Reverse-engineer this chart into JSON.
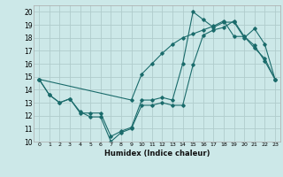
{
  "xlabel": "Humidex (Indice chaleur)",
  "bg_color": "#cce8e8",
  "grid_color": "#b0cccc",
  "line_color": "#1a6b6b",
  "xlim": [
    -0.5,
    23.5
  ],
  "ylim": [
    10,
    20.5
  ],
  "yticks": [
    10,
    11,
    12,
    13,
    14,
    15,
    16,
    17,
    18,
    19,
    20
  ],
  "xticks": [
    0,
    1,
    2,
    3,
    4,
    5,
    6,
    7,
    8,
    9,
    10,
    11,
    12,
    13,
    14,
    15,
    16,
    17,
    18,
    19,
    20,
    21,
    22,
    23
  ],
  "line1_x": [
    0,
    1,
    2,
    3,
    4,
    5,
    6,
    7,
    8,
    9,
    10,
    11,
    12,
    13,
    14,
    15,
    16,
    17,
    18,
    19,
    20,
    21,
    22,
    23
  ],
  "line1_y": [
    14.8,
    13.6,
    13.0,
    13.3,
    12.3,
    11.9,
    11.9,
    10.0,
    10.7,
    11.0,
    12.8,
    12.8,
    13.0,
    12.8,
    12.8,
    15.9,
    18.2,
    18.6,
    18.8,
    19.3,
    18.1,
    17.4,
    16.2,
    14.8
  ],
  "line2_x": [
    0,
    1,
    2,
    3,
    4,
    5,
    6,
    7,
    8,
    9,
    10,
    11,
    12,
    13,
    14,
    15,
    16,
    17,
    18,
    19,
    20,
    21,
    22,
    23
  ],
  "line2_y": [
    14.8,
    13.6,
    13.0,
    13.3,
    12.2,
    12.2,
    12.2,
    10.4,
    10.8,
    11.1,
    13.2,
    13.2,
    13.4,
    13.2,
    16.0,
    20.0,
    19.4,
    18.8,
    19.2,
    19.2,
    18.0,
    18.7,
    17.5,
    14.8
  ],
  "line3_x": [
    0,
    9,
    10,
    11,
    12,
    13,
    14,
    15,
    16,
    17,
    18,
    19,
    20,
    21,
    22,
    23
  ],
  "line3_y": [
    14.8,
    13.2,
    15.2,
    16.0,
    16.8,
    17.5,
    18.0,
    18.3,
    18.6,
    18.9,
    19.3,
    18.1,
    18.1,
    17.2,
    16.4,
    14.8
  ]
}
